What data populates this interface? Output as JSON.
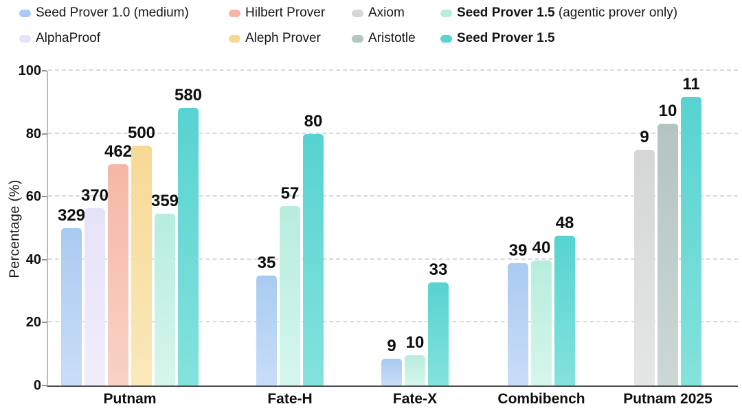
{
  "legend": {
    "items": [
      {
        "key": "seed10",
        "label": "Seed Prover 1.0 (medium)",
        "row": 0,
        "col": 0,
        "bold": false
      },
      {
        "key": "hilbert",
        "label": "Hilbert Prover",
        "row": 0,
        "col": 1,
        "bold": false
      },
      {
        "key": "axiom",
        "label": "Axiom",
        "row": 0,
        "col": 2,
        "bold": false
      },
      {
        "key": "seed15agentic",
        "label_bold": "Seed Prover 1.5",
        "label_rest": " (agentic prover only)",
        "row": 0,
        "col": 3,
        "bold": true
      },
      {
        "key": "alphaproof",
        "label": "AlphaProof",
        "row": 1,
        "col": 0,
        "bold": false
      },
      {
        "key": "aleph",
        "label": "Aleph Prover",
        "row": 1,
        "col": 1,
        "bold": false
      },
      {
        "key": "aristotle",
        "label": "Aristotle",
        "row": 1,
        "col": 2,
        "bold": false
      },
      {
        "key": "seed15",
        "label": "Seed Prover 1.5",
        "row": 1,
        "col": 3,
        "bold": true
      }
    ]
  },
  "chart_data": {
    "type": "bar",
    "title": "",
    "xlabel": "",
    "ylabel": "Percentage (%)",
    "ylim": [
      0,
      100
    ],
    "yticks": [
      0,
      20,
      40,
      60,
      80,
      100
    ],
    "grid": "horizontal-dashed",
    "legend_position": "top",
    "series": [
      {
        "key": "seed10",
        "name": "Seed Prover 1.0 (medium)",
        "color": "#a9cbf1",
        "color_bottom": "#c9ddf8"
      },
      {
        "key": "alphaproof",
        "name": "AlphaProof",
        "color": "#e6e2f8",
        "color_bottom": "#f1eefb"
      },
      {
        "key": "hilbert",
        "name": "Hilbert Prover",
        "color": "#f5b7a5",
        "color_bottom": "#f9d3c6"
      },
      {
        "key": "aleph",
        "name": "Aleph Prover",
        "color": "#f7d995",
        "color_bottom": "#fbe8ba"
      },
      {
        "key": "axiom",
        "name": "Axiom",
        "color": "#d5d7d6",
        "color_bottom": "#e5e6e6"
      },
      {
        "key": "aristotle",
        "name": "Aristotle",
        "color": "#b4c4c1",
        "color_bottom": "#ccd8d5"
      },
      {
        "key": "seed15agentic",
        "name": "Seed Prover 1.5 (agentic prover only)",
        "color": "#b7edde",
        "color_bottom": "#d6f6ec"
      },
      {
        "key": "seed15",
        "name": "Seed Prover 1.5",
        "color": "#57d3d1",
        "color_bottom": "#84e2dc"
      }
    ],
    "categories": [
      "Putnam",
      "Fate-H",
      "Fate-X",
      "Combibench",
      "Putnam 2025"
    ],
    "groups": [
      {
        "category": "Putnam",
        "bars": [
          {
            "series": "seed10",
            "label": "329",
            "pct": 50.1
          },
          {
            "series": "alphaproof",
            "label": "370",
            "pct": 56.3
          },
          {
            "series": "hilbert",
            "label": "462",
            "pct": 70.3
          },
          {
            "series": "aleph",
            "label": "500",
            "pct": 76.1
          },
          {
            "series": "seed15agentic",
            "label": "359",
            "pct": 54.6
          },
          {
            "series": "seed15",
            "label": "580",
            "pct": 88.3
          }
        ]
      },
      {
        "category": "Fate-H",
        "bars": [
          {
            "series": "seed10",
            "label": "35",
            "pct": 35
          },
          {
            "series": "seed15agentic",
            "label": "57",
            "pct": 57
          },
          {
            "series": "seed15",
            "label": "80",
            "pct": 80
          }
        ]
      },
      {
        "category": "Fate-X",
        "bars": [
          {
            "series": "seed10",
            "label": "9",
            "pct": 8.5
          },
          {
            "series": "seed15agentic",
            "label": "10",
            "pct": 9.7
          },
          {
            "series": "seed15",
            "label": "33",
            "pct": 32.7
          }
        ]
      },
      {
        "category": "Combibench",
        "bars": [
          {
            "series": "seed10",
            "label": "39",
            "pct": 38.9
          },
          {
            "series": "seed15agentic",
            "label": "40",
            "pct": 39.8
          },
          {
            "series": "seed15",
            "label": "48",
            "pct": 47.7
          }
        ]
      },
      {
        "category": "Putnam 2025",
        "bars": [
          {
            "series": "axiom",
            "label": "9",
            "pct": 75
          },
          {
            "series": "aristotle",
            "label": "10",
            "pct": 83.3
          },
          {
            "series": "seed15",
            "label": "11",
            "pct": 91.7
          }
        ]
      }
    ]
  }
}
